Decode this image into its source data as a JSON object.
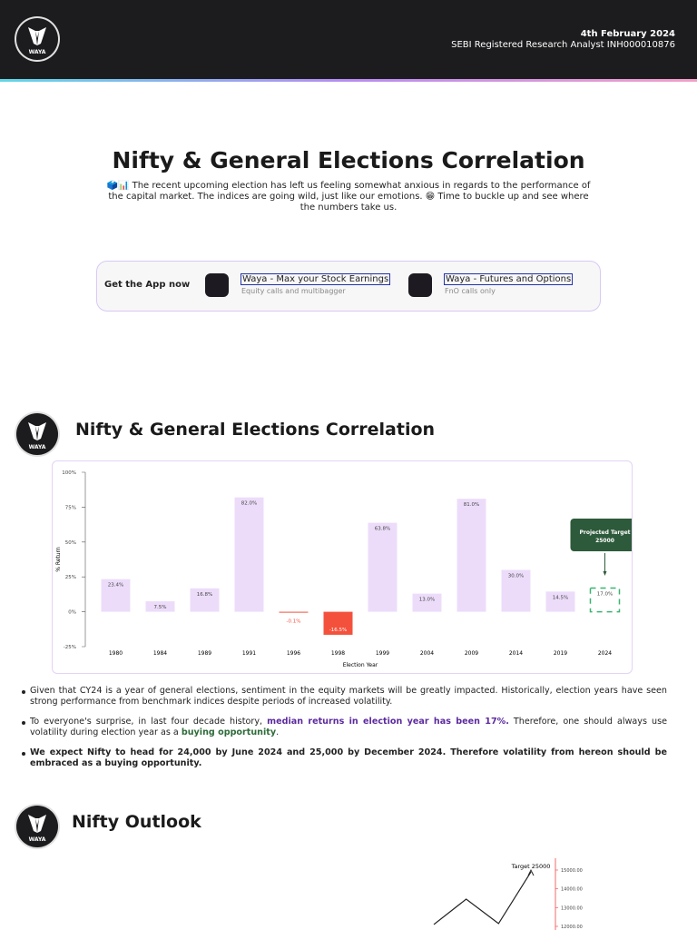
{
  "header": {
    "logo": "WAYA",
    "date": "4th February 2024",
    "sebi": "SEBI Registered Research Analyst INH000010876"
  },
  "title": "Nifty & General Elections Correlation",
  "intro": "🗳️📊 The recent upcoming election has left us feeling somewhat anxious in regards to the performance of the capital market. The indices are going wild, just like our emotions. 😁 Time to buckle up and see where the numbers take us.",
  "app_box": {
    "label": "Get the App now",
    "apps": [
      {
        "name": "Waya - Max your Stock Earnings",
        "desc": "Equity calls and multibagger"
      },
      {
        "name": "Waya - Futures and Options",
        "desc": "FnO calls only"
      }
    ]
  },
  "sections": [
    {
      "heading": "Nifty & General Elections Correlation"
    },
    {
      "heading": "Nifty Outlook"
    }
  ],
  "bullets": [
    [
      "Given that CY24 is a year of general elections, sentiment in the equity markets will be greatly impacted. Historically, election years have seen strong performance from benchmark indices despite periods of increased volatility."
    ],
    [
      "To everyone's surprise, in last four decade history, ",
      "median returns in election year has been 17%.",
      " Therefore, one should always use volatility during election year as a ",
      "buying opportunity",
      "."
    ],
    [
      "We expect Nifty to head for 24,000 by June 2024 and 25,000 by December 2024. Therefore volatility from hereon should be embraced as a buying opportunity."
    ]
  ],
  "chart_data": [
    {
      "type": "bar",
      "xlabel": "Election Year",
      "ylabel": "% Return",
      "categories": [
        "1980",
        "1984",
        "1989",
        "1991",
        "1996",
        "1998",
        "1999",
        "2004",
        "2009",
        "2014",
        "2019",
        "2024"
      ],
      "values": [
        23.4,
        7.5,
        16.8,
        82.0,
        -0.1,
        -16.5,
        63.8,
        13.0,
        81.0,
        30.0,
        14.5,
        17.0
      ],
      "value_labels": [
        "23.4%",
        "7.5%",
        "16.8%",
        "82.0%",
        "-0.1%",
        "-16.5%",
        "63.8%",
        "13.0%",
        "81.0%",
        "30.0%",
        "14.5%",
        "17.0%"
      ],
      "colors": [
        "#ecdcfa",
        "#ecdcfa",
        "#ecdcfa",
        "#ecdcfa",
        "#f4513c",
        "#f4513c",
        "#ecdcfa",
        "#ecdcfa",
        "#ecdcfa",
        "#ecdcfa",
        "#ecdcfa",
        "#3cb371"
      ],
      "bar_style": [
        "solid",
        "solid",
        "solid",
        "solid",
        "solid",
        "solid",
        "solid",
        "solid",
        "solid",
        "solid",
        "solid",
        "dashed"
      ],
      "annotation": [
        "Projected Target",
        "25000"
      ],
      "ylim": [
        -25,
        100
      ],
      "yticks": [
        {
          "value": -25,
          "label": "-25%"
        },
        {
          "value": 0,
          "label": "0%"
        },
        {
          "value": 25,
          "label": "25%"
        },
        {
          "value": 50,
          "label": "50%"
        },
        {
          "value": 75,
          "label": "75%"
        },
        {
          "value": 100,
          "label": "100%"
        }
      ]
    },
    {
      "type": "line",
      "annotation": "Target 25000",
      "color": "#222222",
      "categories": [
        null,
        null,
        null,
        null
      ],
      "values": [
        12100,
        13450,
        12150,
        14900
      ],
      "ylim": [
        12000,
        15000
      ],
      "yticks": [
        {
          "value": 12000,
          "label": "12000.00"
        },
        {
          "value": 13000,
          "label": "13000.00"
        },
        {
          "value": 14000,
          "label": "14000.00"
        },
        {
          "value": 15000,
          "label": "15000.00"
        }
      ]
    }
  ]
}
